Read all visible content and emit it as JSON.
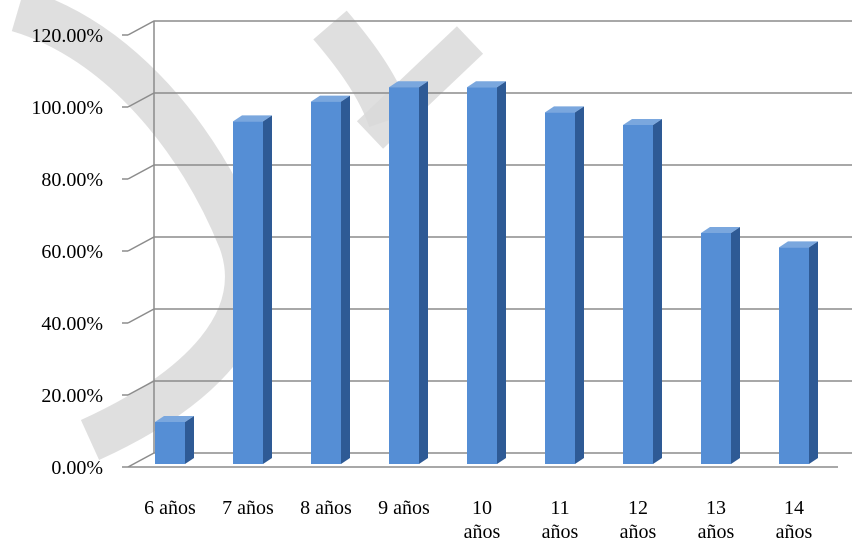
{
  "chart_data": {
    "type": "bar",
    "categories": [
      "6 años",
      "7 años",
      "8 años",
      "9 años",
      "10 años",
      "11 años",
      "12 años",
      "13 años",
      "14 años"
    ],
    "category_lines": [
      [
        "6 años"
      ],
      [
        "7 años"
      ],
      [
        "8 años"
      ],
      [
        "9 años"
      ],
      [
        "10",
        "años"
      ],
      [
        "11",
        "años"
      ],
      [
        "12",
        "años"
      ],
      [
        "13",
        "años"
      ],
      [
        "14",
        "años"
      ]
    ],
    "values": [
      12.5,
      96,
      101.5,
      105.5,
      105.5,
      98.5,
      95,
      65,
      61
    ],
    "ylim": [
      0,
      120
    ],
    "yticks": [
      0,
      20,
      40,
      60,
      80,
      100,
      120
    ],
    "ytick_labels": [
      "0.00%",
      "20.00%",
      "40.00%",
      "60.00%",
      "80.00%",
      "100.00%",
      "120.00%"
    ],
    "title": "",
    "xlabel": "",
    "ylabel": "",
    "grid": true,
    "style": "3d-column",
    "colors": {
      "bar_front": "#558ED5",
      "bar_side": "#2E5A95",
      "bar_top": "#7AA7DE",
      "grid": "#8C8C8C",
      "watermark": "#D9D9D9"
    }
  }
}
